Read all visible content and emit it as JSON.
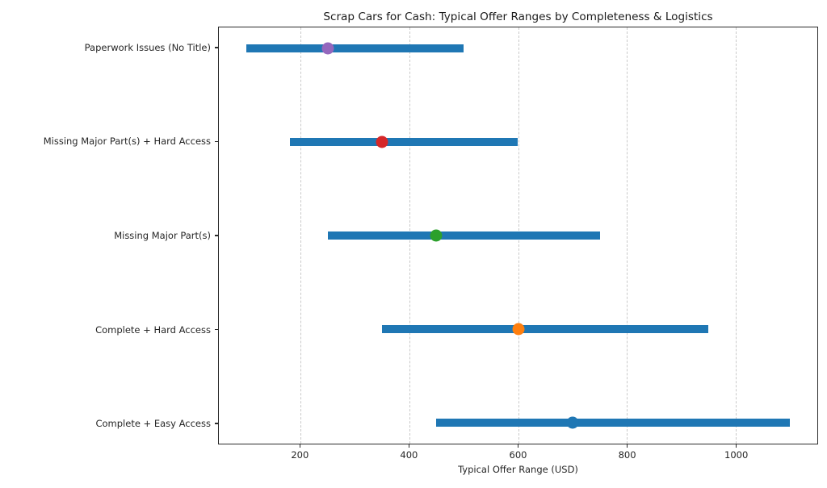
{
  "chart_data": {
    "type": "bar",
    "subtype": "horizontal-range-bars-with-typical-value-markers",
    "title": "Scrap Cars for Cash: Typical Offer Ranges by Completeness & Logistics",
    "xlabel": "Typical Offer Range (USD)",
    "ylabel": "",
    "xlim": [
      50,
      1150
    ],
    "xticks": [
      200,
      400,
      600,
      800,
      1000
    ],
    "grid": {
      "vertical": true,
      "style": "dashed",
      "color": "#c9c9c9"
    },
    "legend": "none",
    "bar_color": "#1f77b4",
    "categories": [
      "Paperwork Issues (No Title)",
      "Missing Major Part(s) + Hard Access",
      "Missing Major Part(s)",
      "Complete + Hard Access",
      "Complete + Easy Access"
    ],
    "rows": [
      {
        "label": "Paperwork Issues (No Title)",
        "low": 100,
        "high": 500,
        "typical": 250,
        "marker_color": "#9467bd"
      },
      {
        "label": "Missing Major Part(s) + Hard Access",
        "low": 180,
        "high": 600,
        "typical": 350,
        "marker_color": "#d62728"
      },
      {
        "label": "Missing Major Part(s)",
        "low": 250,
        "high": 750,
        "typical": 450,
        "marker_color": "#2ca02c"
      },
      {
        "label": "Complete + Hard Access",
        "low": 350,
        "high": 950,
        "typical": 600,
        "marker_color": "#ff7f0e"
      },
      {
        "label": "Complete + Easy Access",
        "low": 450,
        "high": 1100,
        "typical": 700,
        "marker_color": "#1f77b4"
      }
    ]
  }
}
